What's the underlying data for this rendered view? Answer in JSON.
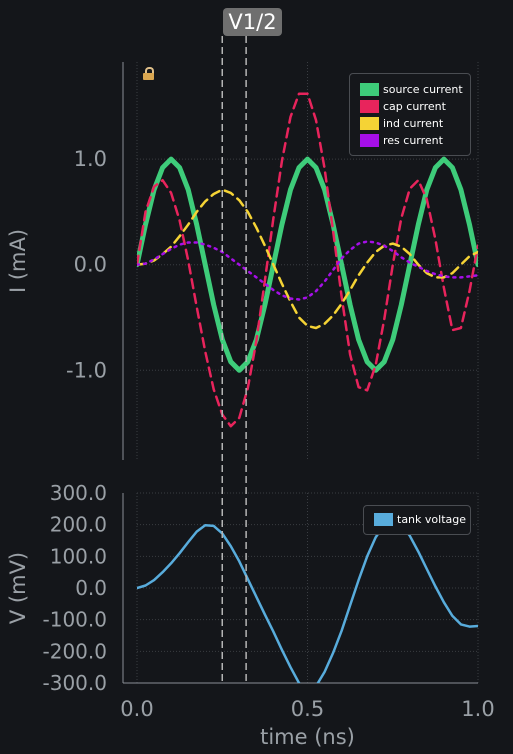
{
  "cursor": {
    "label": "V1/2",
    "positions_ns": [
      0.25,
      0.32
    ]
  },
  "lock_icon": "lock-icon",
  "x_axis": {
    "label": "time (ns)",
    "tick_labels": [
      "0.0",
      "0.5",
      "1.0"
    ],
    "ticks": [
      0.0,
      0.5,
      1.0
    ],
    "range": [
      0.0,
      1.0
    ]
  },
  "chart_data": [
    {
      "type": "line",
      "xlabel": "time (ns)",
      "ylabel": "I (mA)",
      "xlim": [
        0.0,
        1.0
      ],
      "ylim": [
        -1.85,
        1.92
      ],
      "grid": true,
      "legend_position": "top-right",
      "y_ticks": [
        -1.0,
        0.0,
        1.0
      ],
      "y_tick_labels": [
        "-1.0",
        "0.0",
        "1.0"
      ],
      "series": [
        {
          "name": "source current",
          "color": "#3ecc7a",
          "style": "solid",
          "x": [
            0.0,
            0.025,
            0.05,
            0.075,
            0.1,
            0.125,
            0.15,
            0.175,
            0.2,
            0.225,
            0.25,
            0.275,
            0.3,
            0.325,
            0.35,
            0.375,
            0.4,
            0.425,
            0.45,
            0.475,
            0.5,
            0.525,
            0.55,
            0.575,
            0.6,
            0.625,
            0.65,
            0.675,
            0.7,
            0.725,
            0.75,
            0.775,
            0.8,
            0.825,
            0.85,
            0.875,
            0.9,
            0.925,
            0.95,
            0.975,
            1.0
          ],
          "y": [
            0.0,
            0.38,
            0.71,
            0.92,
            1.0,
            0.92,
            0.71,
            0.38,
            0.0,
            -0.38,
            -0.71,
            -0.92,
            -1.0,
            -0.92,
            -0.71,
            -0.38,
            0.0,
            0.38,
            0.71,
            0.92,
            1.0,
            0.92,
            0.71,
            0.38,
            0.0,
            -0.38,
            -0.71,
            -0.92,
            -1.0,
            -0.92,
            -0.71,
            -0.38,
            0.0,
            0.38,
            0.71,
            0.92,
            1.0,
            0.92,
            0.71,
            0.38,
            0.0
          ]
        },
        {
          "name": "cap current",
          "color": "#e8245c",
          "style": "dashed",
          "x": [
            0.0,
            0.025,
            0.05,
            0.075,
            0.1,
            0.125,
            0.15,
            0.175,
            0.2,
            0.225,
            0.25,
            0.275,
            0.3,
            0.325,
            0.35,
            0.375,
            0.4,
            0.425,
            0.45,
            0.475,
            0.5,
            0.525,
            0.55,
            0.575,
            0.6,
            0.625,
            0.65,
            0.675,
            0.7,
            0.725,
            0.75,
            0.775,
            0.8,
            0.825,
            0.85,
            0.875,
            0.9,
            0.925,
            0.95,
            0.975,
            1.0
          ],
          "y": [
            0.0,
            0.5,
            0.74,
            0.8,
            0.68,
            0.42,
            0.04,
            -0.4,
            -0.82,
            -1.18,
            -1.42,
            -1.53,
            -1.45,
            -1.17,
            -0.72,
            -0.15,
            0.44,
            0.98,
            1.4,
            1.62,
            1.62,
            1.37,
            0.91,
            0.32,
            -0.3,
            -0.85,
            -1.16,
            -1.19,
            -0.95,
            -0.52,
            0.0,
            0.44,
            0.72,
            0.8,
            0.62,
            0.24,
            -0.22,
            -0.62,
            -0.6,
            -0.25,
            0.18
          ]
        },
        {
          "name": "ind current",
          "color": "#f5d335",
          "style": "dashed",
          "x": [
            0.0,
            0.025,
            0.05,
            0.075,
            0.1,
            0.125,
            0.15,
            0.175,
            0.2,
            0.225,
            0.25,
            0.275,
            0.3,
            0.325,
            0.35,
            0.375,
            0.4,
            0.425,
            0.45,
            0.475,
            0.5,
            0.525,
            0.55,
            0.575,
            0.6,
            0.625,
            0.65,
            0.675,
            0.7,
            0.725,
            0.75,
            0.775,
            0.8,
            0.825,
            0.85,
            0.875,
            0.9,
            0.925,
            0.95,
            0.975,
            1.0
          ],
          "y": [
            0.0,
            0.01,
            0.04,
            0.1,
            0.17,
            0.27,
            0.38,
            0.5,
            0.6,
            0.67,
            0.71,
            0.68,
            0.61,
            0.5,
            0.35,
            0.18,
            0.0,
            -0.18,
            -0.35,
            -0.5,
            -0.58,
            -0.6,
            -0.56,
            -0.48,
            -0.37,
            -0.24,
            -0.1,
            0.02,
            0.12,
            0.18,
            0.2,
            0.17,
            0.1,
            0.0,
            -0.08,
            -0.12,
            -0.12,
            -0.08,
            0.0,
            0.08,
            0.12
          ]
        },
        {
          "name": "res current",
          "color": "#a60fe8",
          "style": "dotted",
          "x": [
            0.0,
            0.025,
            0.05,
            0.075,
            0.1,
            0.125,
            0.15,
            0.175,
            0.2,
            0.225,
            0.25,
            0.275,
            0.3,
            0.325,
            0.35,
            0.375,
            0.4,
            0.425,
            0.45,
            0.475,
            0.5,
            0.525,
            0.55,
            0.575,
            0.6,
            0.625,
            0.65,
            0.675,
            0.7,
            0.725,
            0.75,
            0.775,
            0.8,
            0.825,
            0.85,
            0.875,
            0.9,
            0.925,
            0.95,
            0.975,
            1.0
          ],
          "y": [
            0.0,
            0.01,
            0.05,
            0.1,
            0.15,
            0.19,
            0.21,
            0.21,
            0.19,
            0.16,
            0.12,
            0.06,
            0.0,
            -0.06,
            -0.12,
            -0.18,
            -0.24,
            -0.29,
            -0.32,
            -0.33,
            -0.31,
            -0.25,
            -0.16,
            -0.05,
            0.06,
            0.14,
            0.2,
            0.22,
            0.21,
            0.18,
            0.13,
            0.07,
            0.02,
            -0.02,
            -0.06,
            -0.09,
            -0.11,
            -0.12,
            -0.12,
            -0.11,
            -0.1
          ]
        }
      ]
    },
    {
      "type": "line",
      "xlabel": "time (ns)",
      "ylabel": "V (mV)",
      "xlim": [
        0.0,
        1.0
      ],
      "ylim": [
        -300.0,
        300.0
      ],
      "grid": true,
      "legend_position": "top-right",
      "y_ticks": [
        300,
        200,
        100,
        0,
        -100,
        -200,
        -300
      ],
      "y_tick_labels": [
        "300.0",
        "200.0",
        "100.0",
        "0.0",
        "-100.0",
        "-200.0",
        "-300.0"
      ],
      "series": [
        {
          "name": "tank voltage",
          "color": "#58acdc",
          "style": "solid",
          "x": [
            0.0,
            0.025,
            0.05,
            0.075,
            0.1,
            0.125,
            0.15,
            0.175,
            0.2,
            0.225,
            0.25,
            0.275,
            0.3,
            0.325,
            0.35,
            0.375,
            0.4,
            0.425,
            0.45,
            0.475,
            0.5,
            0.525,
            0.55,
            0.575,
            0.6,
            0.625,
            0.65,
            0.675,
            0.7,
            0.725,
            0.75,
            0.775,
            0.8,
            0.825,
            0.85,
            0.875,
            0.9,
            0.925,
            0.95,
            0.975,
            1.0
          ],
          "y": [
            0,
            8,
            25,
            50,
            78,
            110,
            145,
            178,
            198,
            196,
            172,
            132,
            84,
            28,
            -28,
            -84,
            -138,
            -195,
            -250,
            -300,
            -340,
            -310,
            -265,
            -205,
            -135,
            -55,
            25,
            100,
            160,
            200,
            215,
            200,
            165,
            115,
            60,
            5,
            -45,
            -88,
            -115,
            -122,
            -120
          ]
        }
      ]
    }
  ]
}
